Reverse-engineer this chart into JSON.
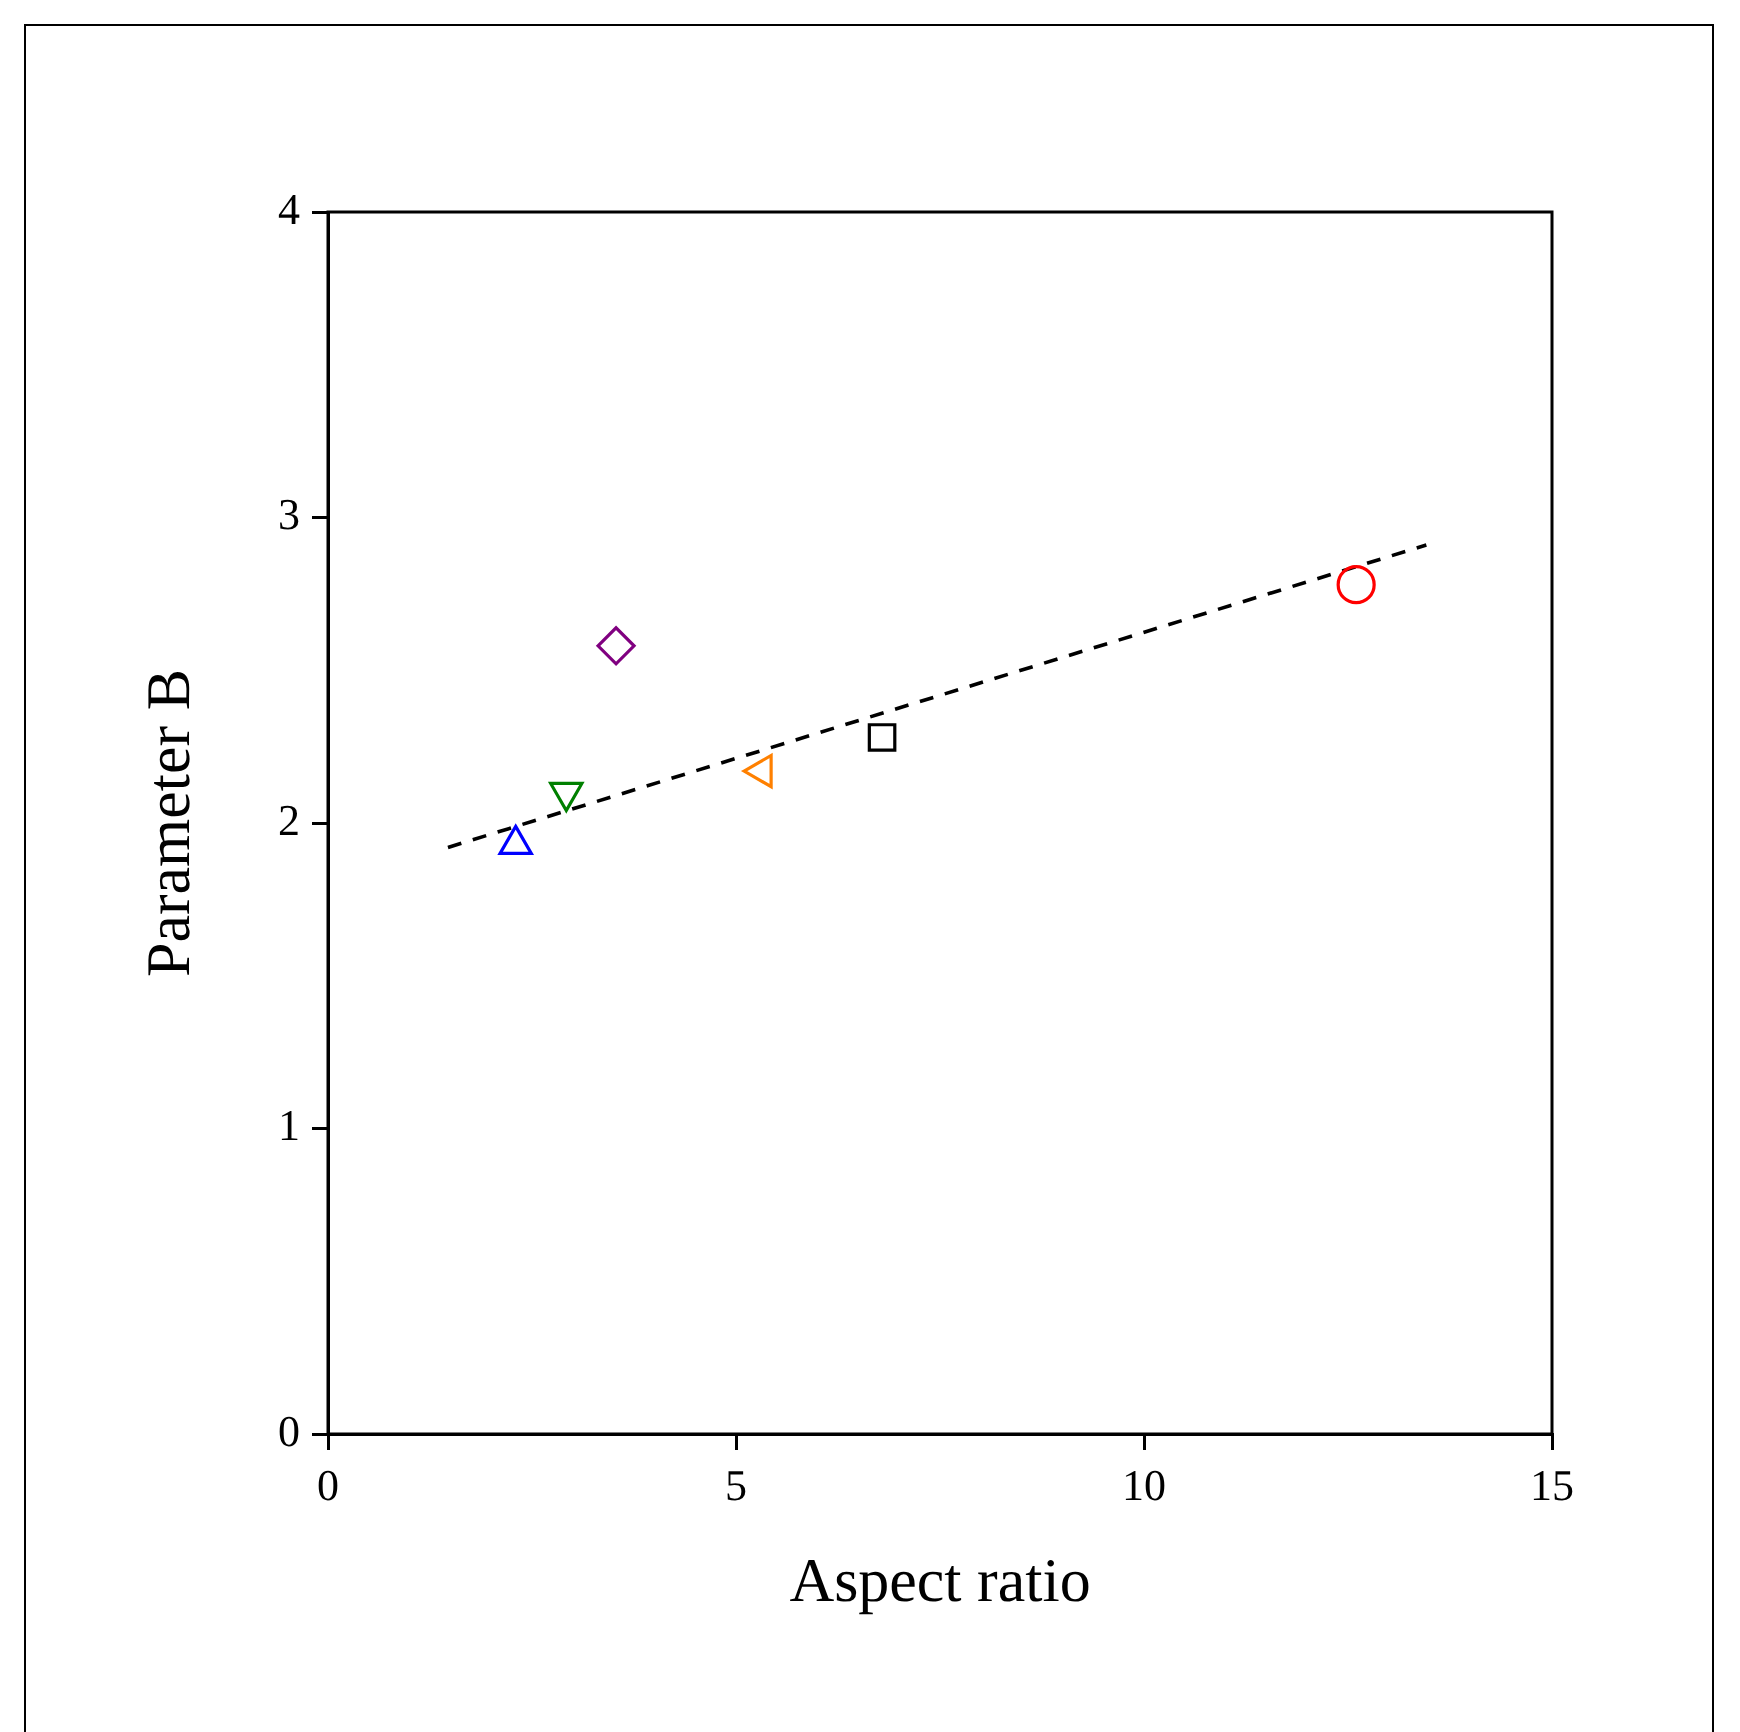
{
  "chart_data": {
    "type": "scatter",
    "xlabel": "Aspect ratio",
    "ylabel": "Parameter B",
    "xlim": [
      0,
      15
    ],
    "ylim": [
      0,
      4
    ],
    "xticks": [
      0,
      5,
      10,
      15
    ],
    "yticks": [
      0,
      1,
      2,
      3,
      4
    ],
    "grid": false,
    "legend": false,
    "series": [
      {
        "color": "#0000ff",
        "marker": "triangle",
        "x": [
          2.3
        ],
        "values": [
          1.93
        ]
      },
      {
        "color": "#008000",
        "marker": "triangle-down",
        "x": [
          2.92
        ],
        "values": [
          2.1
        ]
      },
      {
        "color": "#800080",
        "marker": "diamond",
        "x": [
          3.53
        ],
        "values": [
          2.58
        ]
      },
      {
        "color": "#ff8000",
        "marker": "triangle-left",
        "x": [
          5.32
        ],
        "values": [
          2.17
        ]
      },
      {
        "color": "#000000",
        "marker": "square",
        "x": [
          6.79
        ],
        "values": [
          2.28
        ]
      },
      {
        "color": "#ff0000",
        "marker": "circle",
        "x": [
          12.6
        ],
        "values": [
          2.78
        ]
      },
      {
        "type": "line",
        "color": "#000000",
        "marker": "none",
        "line_style": "dashed",
        "x": [
          1.47,
          13.46
        ],
        "values": [
          1.92,
          2.91
        ]
      }
    ]
  }
}
